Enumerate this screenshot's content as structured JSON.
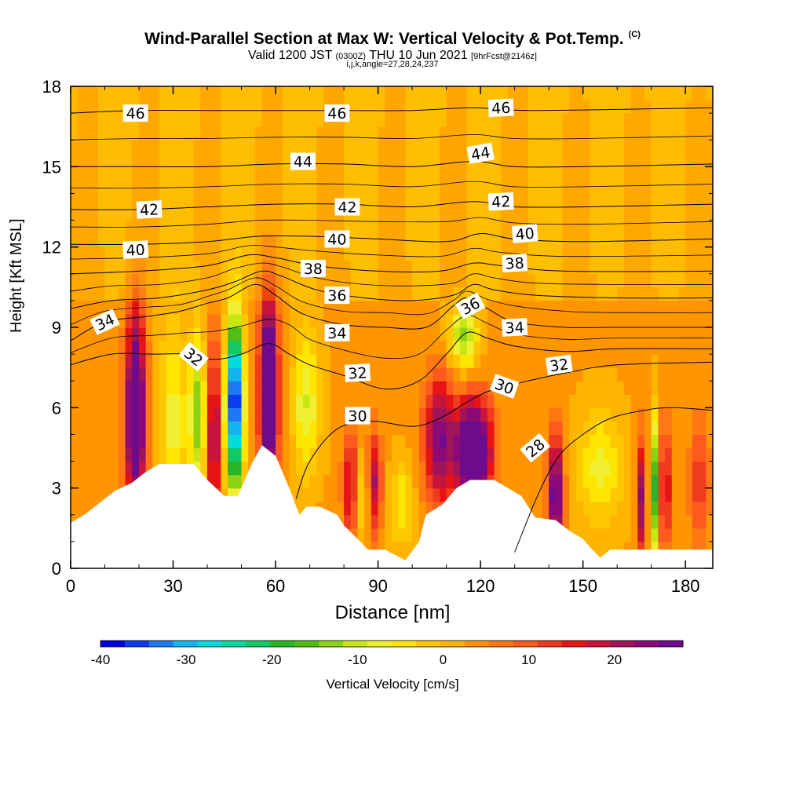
{
  "header": {
    "title": "Wind-Parallel Section at Max W: Vertical Velocity & Pot.Temp.",
    "copyright": "(C)",
    "subtitle_a": "Valid 1200 JST",
    "subtitle_b": "(0300Z)",
    "subtitle_c": "THU 10 Jun 2021",
    "subtitle_d": "[9hrFcst@2146z]",
    "subtitle_line2": "i,j,k,angle=27,28,24,237"
  },
  "chart_data": {
    "type": "heatmap",
    "title": "Wind-Parallel Section at Max W: Vertical Velocity & Pot.Temp.",
    "xlabel": "Distance [nm]",
    "ylabel": "Height [Kft MSL]",
    "xlim": [
      0,
      188
    ],
    "ylim": [
      0,
      18
    ],
    "x_ticks": [
      0,
      30,
      60,
      90,
      120,
      150,
      180
    ],
    "y_ticks": [
      0,
      3,
      6,
      9,
      12,
      15,
      18
    ],
    "colorbar": {
      "label": "Vertical Velocity [cm/s]",
      "ticks": [
        -40,
        -30,
        -20,
        -10,
        0,
        10,
        20
      ],
      "min": -40,
      "max": 28,
      "colors": [
        "#0000e0",
        "#0a3cf0",
        "#1e78f5",
        "#14b4f0",
        "#00dcdc",
        "#00dca0",
        "#14c864",
        "#28b428",
        "#50be14",
        "#8cd214",
        "#c8e614",
        "#f0f032",
        "#ffe600",
        "#ffc800",
        "#ffb400",
        "#ff9600",
        "#ff7814",
        "#ff5a1e",
        "#f03c1e",
        "#e61414",
        "#c8143c",
        "#a0145a",
        "#8c0a78",
        "#6e0a8c"
      ]
    },
    "terrain": [
      [
        0,
        1.7
      ],
      [
        4,
        2.0
      ],
      [
        9,
        2.5
      ],
      [
        13,
        2.9
      ],
      [
        18,
        3.2
      ],
      [
        22,
        3.6
      ],
      [
        26,
        3.9
      ],
      [
        36,
        3.9
      ],
      [
        40,
        3.3
      ],
      [
        45,
        2.7
      ],
      [
        49,
        2.7
      ],
      [
        53,
        3.9
      ],
      [
        56,
        4.6
      ],
      [
        60,
        4.2
      ],
      [
        64,
        3.0
      ],
      [
        67,
        2.0
      ],
      [
        69,
        2.3
      ],
      [
        73,
        2.3
      ],
      [
        78,
        2.0
      ],
      [
        80,
        1.6
      ],
      [
        84,
        1.1
      ],
      [
        87,
        0.7
      ],
      [
        92,
        0.7
      ],
      [
        95,
        0.5
      ],
      [
        98,
        0.3
      ],
      [
        102,
        1.0
      ],
      [
        104,
        2.0
      ],
      [
        109,
        2.4
      ],
      [
        113,
        3.0
      ],
      [
        117,
        3.3
      ],
      [
        124,
        3.3
      ],
      [
        128,
        3.0
      ],
      [
        132,
        2.7
      ],
      [
        136,
        1.9
      ],
      [
        142,
        1.8
      ],
      [
        146,
        1.4
      ],
      [
        150,
        1.1
      ],
      [
        152,
        0.8
      ],
      [
        155,
        0.4
      ],
      [
        158,
        0.7
      ],
      [
        188,
        0.7
      ]
    ],
    "theta_contours": [
      {
        "level": 28,
        "points": [
          [
            130,
            0.6
          ],
          [
            137,
            2.8
          ],
          [
            143,
            4.2
          ],
          [
            150,
            5.0
          ],
          [
            158,
            5.6
          ],
          [
            168,
            5.9
          ],
          [
            176,
            6.0
          ],
          [
            188,
            5.9
          ]
        ]
      },
      {
        "level": 30,
        "points": [
          [
            66,
            2.6
          ],
          [
            70,
            4.0
          ],
          [
            78,
            5.2
          ],
          [
            88,
            5.5
          ],
          [
            100,
            5.3
          ],
          [
            108,
            5.6
          ],
          [
            116,
            6.2
          ],
          [
            122,
            6.6
          ],
          [
            128,
            6.8
          ],
          [
            134,
            7.0
          ],
          [
            145,
            7.3
          ],
          [
            160,
            7.6
          ],
          [
            188,
            7.7
          ]
        ]
      },
      {
        "level": 32,
        "points": [
          [
            0,
            7.6
          ],
          [
            12,
            8.0
          ],
          [
            24,
            8.0
          ],
          [
            34,
            8.0
          ],
          [
            42,
            7.8
          ],
          [
            50,
            8.0
          ],
          [
            58,
            8.4
          ],
          [
            64,
            8.0
          ],
          [
            70,
            7.6
          ],
          [
            80,
            7.2
          ],
          [
            92,
            6.7
          ],
          [
            102,
            7.0
          ],
          [
            110,
            8.0
          ],
          [
            116,
            8.8
          ],
          [
            122,
            8.6
          ],
          [
            130,
            8.3
          ],
          [
            145,
            8.1
          ],
          [
            160,
            8.2
          ],
          [
            188,
            8.2
          ]
        ]
      },
      {
        "level": 34,
        "points": [
          [
            0,
            8.5
          ],
          [
            10,
            9.2
          ],
          [
            22,
            9.4
          ],
          [
            32,
            9.6
          ],
          [
            40,
            9.9
          ],
          [
            46,
            10.1
          ],
          [
            54,
            10.6
          ],
          [
            60,
            10.2
          ],
          [
            68,
            9.5
          ],
          [
            80,
            9.1
          ],
          [
            92,
            9.0
          ],
          [
            104,
            9.0
          ],
          [
            112,
            9.8
          ],
          [
            116,
            10.1
          ],
          [
            122,
            9.7
          ],
          [
            130,
            9.2
          ],
          [
            145,
            9.0
          ],
          [
            160,
            9.0
          ],
          [
            188,
            9.0
          ]
        ]
      },
      {
        "level": 36,
        "points": [
          [
            0,
            9.7
          ],
          [
            12,
            10.0
          ],
          [
            26,
            10.1
          ],
          [
            40,
            10.4
          ],
          [
            48,
            10.7
          ],
          [
            56,
            11.1
          ],
          [
            62,
            10.9
          ],
          [
            72,
            10.4
          ],
          [
            86,
            10.1
          ],
          [
            100,
            10.0
          ],
          [
            112,
            10.2
          ],
          [
            118,
            10.6
          ],
          [
            124,
            10.4
          ],
          [
            136,
            10.2
          ],
          [
            160,
            10.1
          ],
          [
            188,
            10.1
          ]
        ]
      },
      {
        "level": 38,
        "points": [
          [
            0,
            11.0
          ],
          [
            20,
            11.1
          ],
          [
            40,
            11.3
          ],
          [
            52,
            11.7
          ],
          [
            60,
            11.6
          ],
          [
            72,
            11.3
          ],
          [
            90,
            11.1
          ],
          [
            108,
            11.1
          ],
          [
            118,
            11.4
          ],
          [
            126,
            11.3
          ],
          [
            145,
            11.1
          ],
          [
            188,
            11.1
          ]
        ]
      },
      {
        "level": 40,
        "points": [
          [
            0,
            12.1
          ],
          [
            20,
            12.1
          ],
          [
            40,
            12.2
          ],
          [
            55,
            12.4
          ],
          [
            70,
            12.4
          ],
          [
            90,
            12.3
          ],
          [
            110,
            12.2
          ],
          [
            120,
            12.5
          ],
          [
            130,
            12.3
          ],
          [
            150,
            12.2
          ],
          [
            188,
            12.3
          ]
        ]
      },
      {
        "level": 42,
        "points": [
          [
            0,
            13.4
          ],
          [
            20,
            13.4
          ],
          [
            40,
            13.5
          ],
          [
            60,
            13.6
          ],
          [
            80,
            13.6
          ],
          [
            100,
            13.5
          ],
          [
            118,
            13.7
          ],
          [
            130,
            13.5
          ],
          [
            150,
            13.5
          ],
          [
            188,
            13.6
          ]
        ]
      },
      {
        "level": 44,
        "points": [
          [
            0,
            15.0
          ],
          [
            20,
            15.0
          ],
          [
            40,
            15.0
          ],
          [
            60,
            15.1
          ],
          [
            80,
            15.1
          ],
          [
            100,
            15.0
          ],
          [
            118,
            15.2
          ],
          [
            130,
            15.0
          ],
          [
            150,
            15.0
          ],
          [
            188,
            15.1
          ]
        ]
      },
      {
        "level": 46,
        "points": [
          [
            0,
            17.0
          ],
          [
            20,
            17.1
          ],
          [
            40,
            17.1
          ],
          [
            60,
            17.1
          ],
          [
            80,
            17.1
          ],
          [
            100,
            17.1
          ],
          [
            118,
            17.2
          ],
          [
            135,
            17.1
          ],
          [
            188,
            17.2
          ]
        ]
      }
    ],
    "contour_labels": [
      {
        "text": "46",
        "x": 19,
        "y": 17.0,
        "angle": 0
      },
      {
        "text": "46",
        "x": 78,
        "y": 17.0,
        "angle": 0
      },
      {
        "text": "46",
        "x": 126,
        "y": 17.2,
        "angle": -3
      },
      {
        "text": "44",
        "x": 68,
        "y": 15.2,
        "angle": 0
      },
      {
        "text": "44",
        "x": 120,
        "y": 15.5,
        "angle": -10
      },
      {
        "text": "42",
        "x": 23,
        "y": 13.4,
        "angle": -3
      },
      {
        "text": "42",
        "x": 81,
        "y": 13.5,
        "angle": 0
      },
      {
        "text": "42",
        "x": 126,
        "y": 13.7,
        "angle": -3
      },
      {
        "text": "40",
        "x": 19,
        "y": 11.9,
        "angle": -3
      },
      {
        "text": "40",
        "x": 78,
        "y": 12.3,
        "angle": 0
      },
      {
        "text": "40",
        "x": 133,
        "y": 12.5,
        "angle": -5
      },
      {
        "text": "38",
        "x": 71,
        "y": 11.2,
        "angle": 0
      },
      {
        "text": "38",
        "x": 130,
        "y": 11.4,
        "angle": -3
      },
      {
        "text": "36",
        "x": 78,
        "y": 10.2,
        "angle": 0
      },
      {
        "text": "36",
        "x": 117,
        "y": 9.8,
        "angle": -28
      },
      {
        "text": "34",
        "x": 10,
        "y": 9.2,
        "angle": -25
      },
      {
        "text": "34",
        "x": 78,
        "y": 8.8,
        "angle": 0
      },
      {
        "text": "34",
        "x": 130,
        "y": 9.0,
        "angle": -3
      },
      {
        "text": "32",
        "x": 36,
        "y": 7.9,
        "angle": 40
      },
      {
        "text": "32",
        "x": 84,
        "y": 7.3,
        "angle": -3
      },
      {
        "text": "32",
        "x": 143,
        "y": 7.6,
        "angle": -8
      },
      {
        "text": "30",
        "x": 84,
        "y": 5.7,
        "angle": 0
      },
      {
        "text": "30",
        "x": 127,
        "y": 6.8,
        "angle": 20
      },
      {
        "text": "28",
        "x": 136,
        "y": 4.5,
        "angle": -40
      }
    ],
    "velocity_features": [
      {
        "x": 19,
        "y": 5.8,
        "w": 35,
        "sx": 2.0,
        "sy": 2.6
      },
      {
        "x": 30,
        "y": 5.5,
        "w": -10,
        "sx": 3.0,
        "sy": 2.6
      },
      {
        "x": 37,
        "y": 5.8,
        "w": -16,
        "sx": 1.6,
        "sy": 2.2
      },
      {
        "x": 42,
        "y": 5.0,
        "w": 25,
        "sx": 1.0,
        "sy": 2.3
      },
      {
        "x": 48,
        "y": 6.2,
        "w": -45,
        "sx": 1.7,
        "sy": 2.2
      },
      {
        "x": 58,
        "y": 6.6,
        "w": 40,
        "sx": 1.8,
        "sy": 2.4
      },
      {
        "x": 69,
        "y": 6.2,
        "w": -12,
        "sx": 2.8,
        "sy": 1.9
      },
      {
        "x": 82,
        "y": 3.0,
        "w": 22,
        "sx": 1.6,
        "sy": 1.4
      },
      {
        "x": 84,
        "y": 2.7,
        "w": -10,
        "sx": 2.5,
        "sy": 1.1
      },
      {
        "x": 89,
        "y": 3.2,
        "w": 18,
        "sx": 1.4,
        "sy": 1.3
      },
      {
        "x": 97,
        "y": 2.4,
        "w": -8,
        "sx": 2.5,
        "sy": 1.2
      },
      {
        "x": 108,
        "y": 4.8,
        "w": 22,
        "sx": 3.2,
        "sy": 1.7
      },
      {
        "x": 115,
        "y": 8.6,
        "w": -16,
        "sx": 3.0,
        "sy": 0.9
      },
      {
        "x": 118,
        "y": 4.3,
        "w": 38,
        "sx": 3.5,
        "sy": 1.4
      },
      {
        "x": 142,
        "y": 2.8,
        "w": 28,
        "sx": 1.5,
        "sy": 1.6
      },
      {
        "x": 155,
        "y": 3.8,
        "w": -10,
        "sx": 5.0,
        "sy": 1.5
      },
      {
        "x": 167,
        "y": 2.6,
        "w": 20,
        "sx": 0.9,
        "sy": 1.6
      },
      {
        "x": 171,
        "y": 3.0,
        "w": -22,
        "sx": 0.8,
        "sy": 1.9
      },
      {
        "x": 174,
        "y": 3.0,
        "w": 16,
        "sx": 1.2,
        "sy": 1.7
      },
      {
        "x": 184,
        "y": 3.2,
        "w": 10,
        "sx": 2.0,
        "sy": 1.7
      }
    ]
  }
}
